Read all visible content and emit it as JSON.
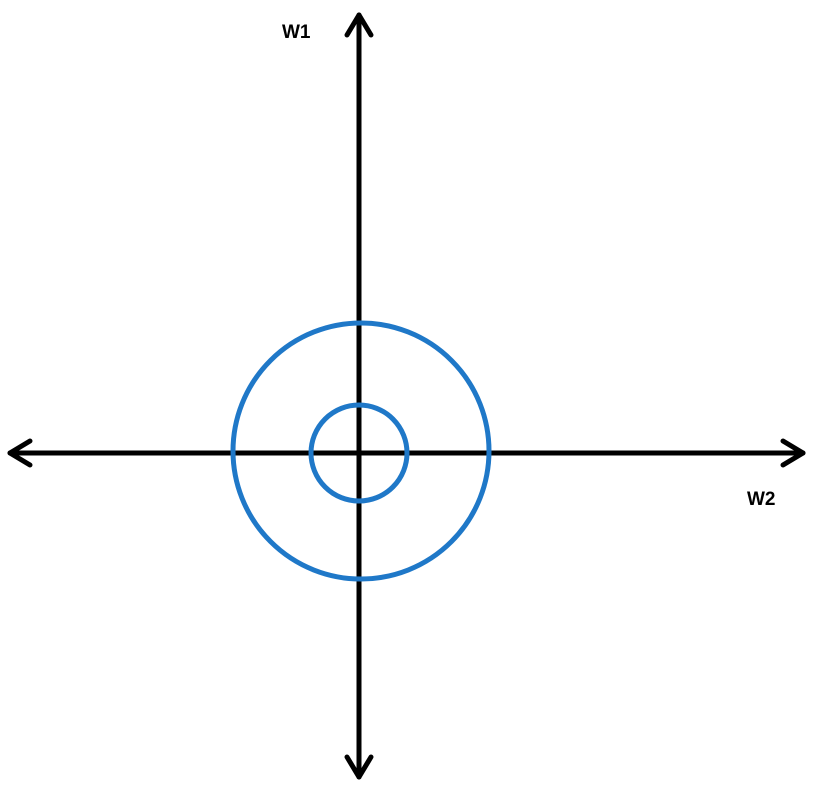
{
  "labels": {
    "vertical_axis": "W1",
    "horizontal_axis": "W2"
  },
  "colors": {
    "axis": "#000000",
    "contour": "#1f78c8"
  },
  "contours": {
    "count": 2,
    "shape": "concentric circles centered at origin"
  }
}
